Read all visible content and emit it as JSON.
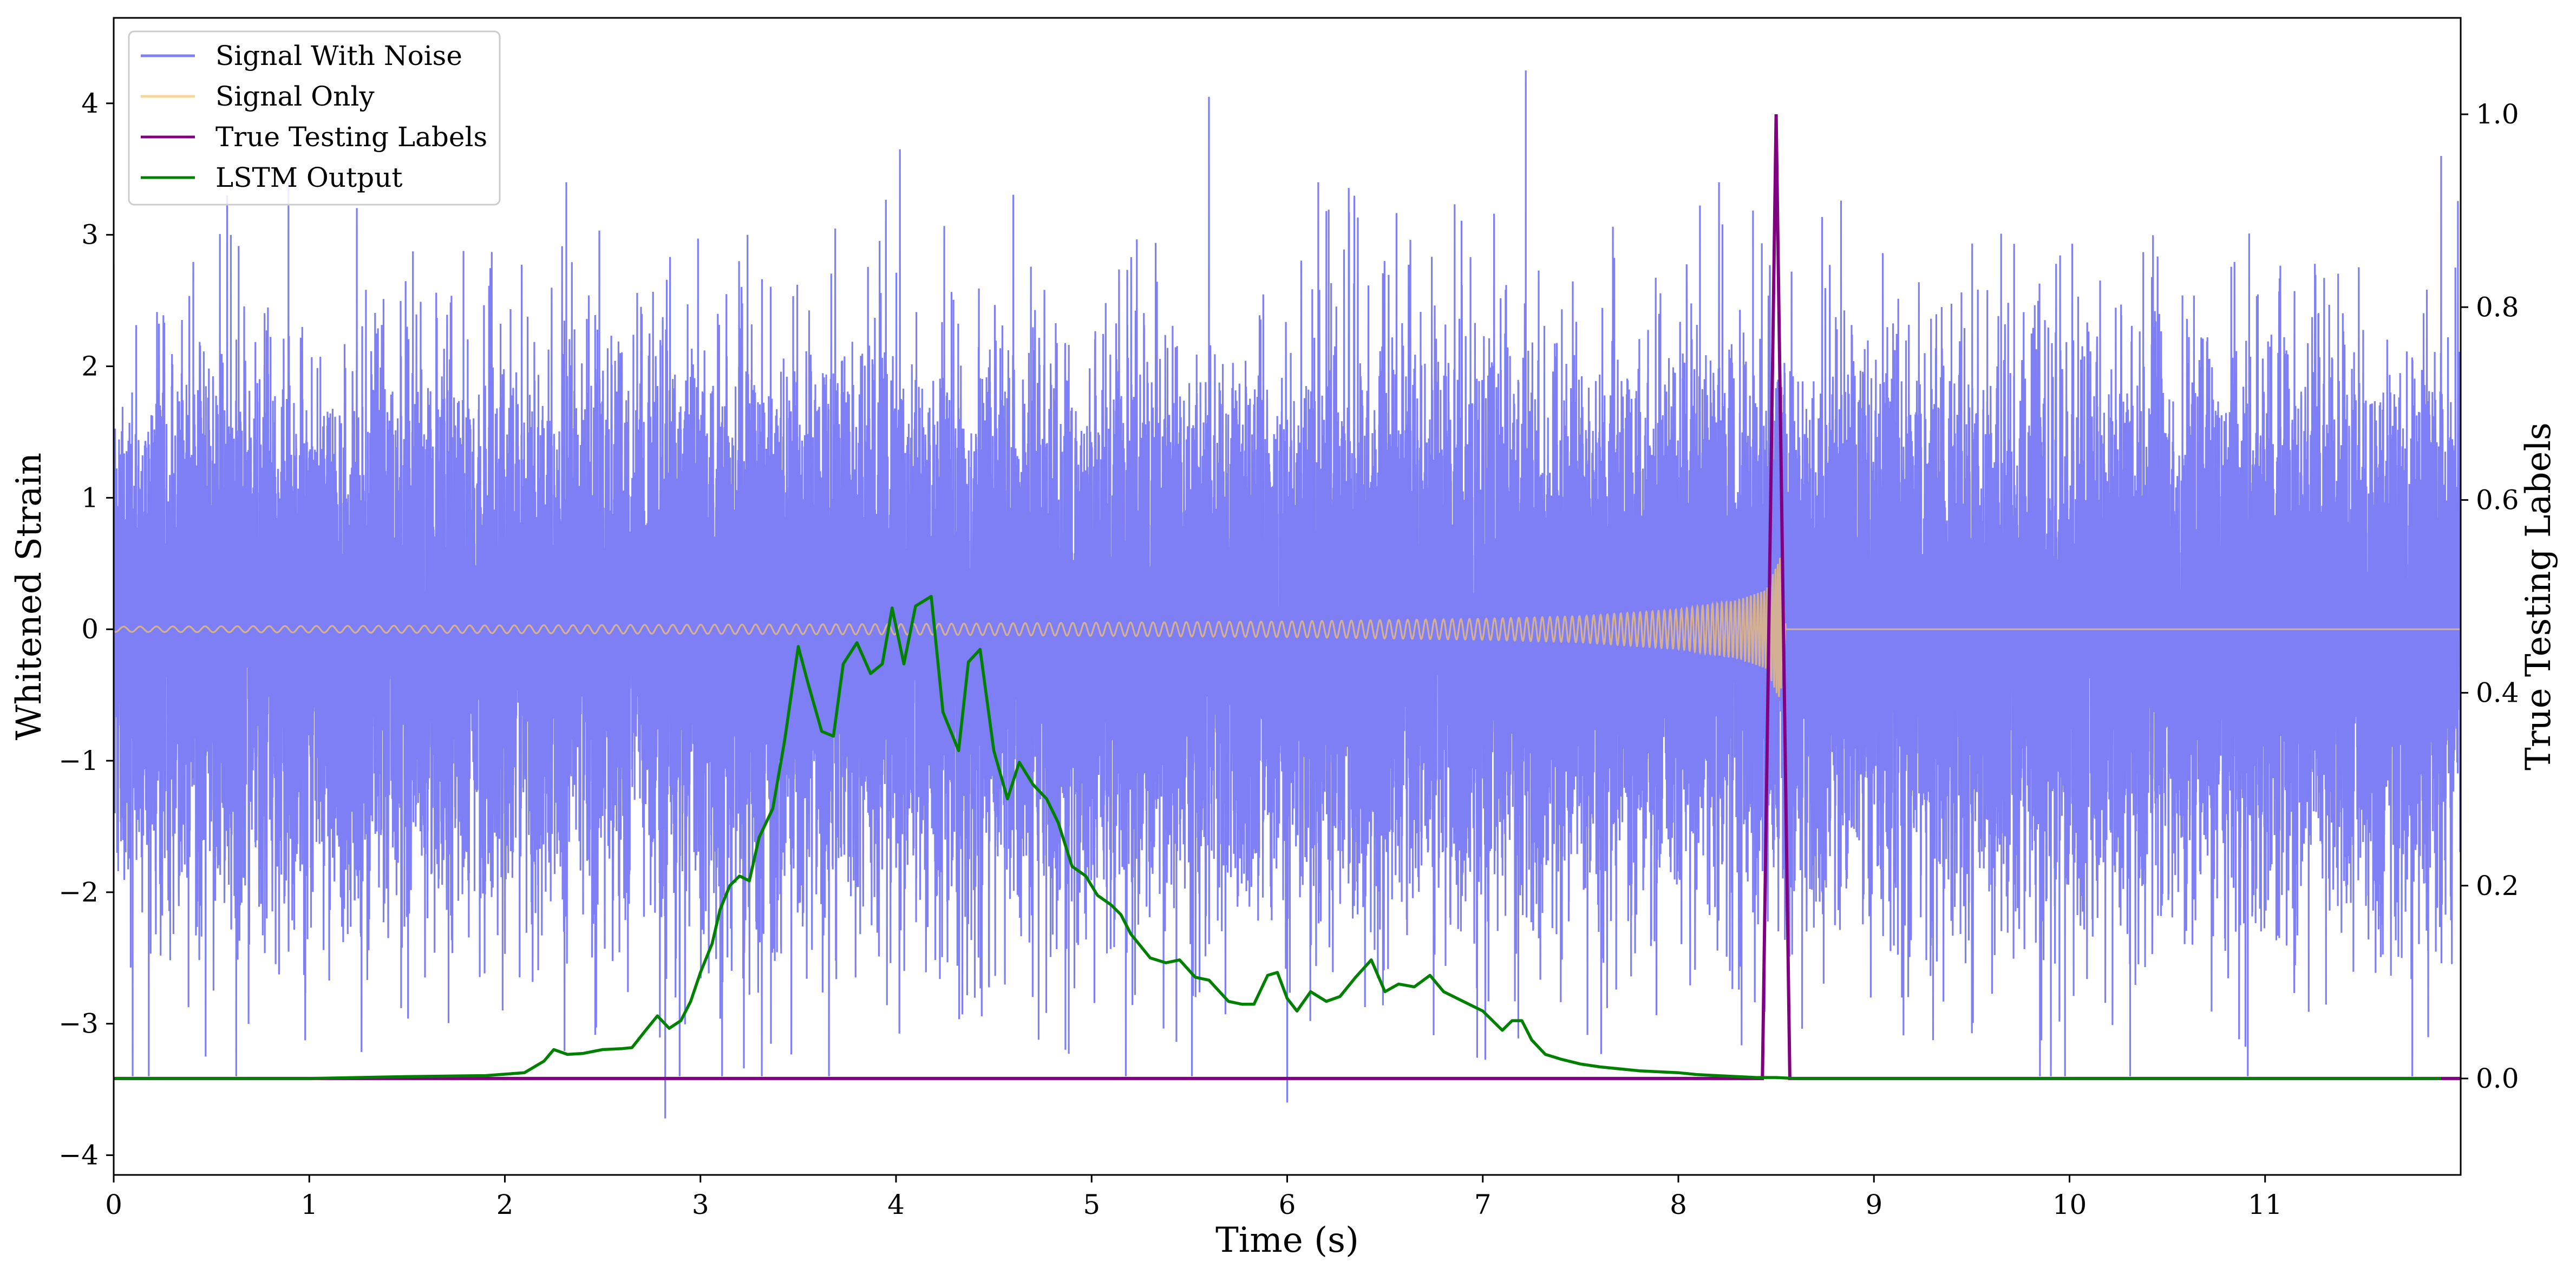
{
  "chart_data": {
    "type": "line",
    "xlabel": "Time (s)",
    "ylabel": "Whitened Strain",
    "ylabel_right": "True Testing Labels",
    "xlim": [
      0,
      12
    ],
    "ylim": [
      -4.15,
      4.65
    ],
    "ylim_right": [
      -0.1,
      1.1
    ],
    "x_ticks": [
      0,
      1,
      2,
      3,
      4,
      5,
      6,
      7,
      8,
      9,
      10,
      11
    ],
    "x_tick_labels": [
      "0",
      "1",
      "2",
      "3",
      "4",
      "5",
      "6",
      "7",
      "8",
      "9",
      "10",
      "11"
    ],
    "y_ticks": [
      -4,
      -3,
      -2,
      -1,
      0,
      1,
      2,
      3,
      4
    ],
    "y_tick_labels": [
      "−4",
      "−3",
      "−2",
      "−1",
      "0",
      "1",
      "2",
      "3",
      "4"
    ],
    "y_right_ticks": [
      0.0,
      0.2,
      0.4,
      0.6,
      0.8,
      1.0
    ],
    "y_right_tick_labels": [
      "0.0",
      "0.2",
      "0.4",
      "0.6",
      "0.8",
      "1.0"
    ],
    "grid": false,
    "legend_position": "top-left",
    "series": [
      {
        "name": "Signal With Noise",
        "color": "#7f7ff5",
        "axis": "left",
        "kind": "noise",
        "description_of_values": "approximately Gaussian noise, std 1",
        "noise_std": 1.0,
        "notable_peaks": [
          [
            0.47,
            -3.25
          ],
          [
            0.58,
            3.3
          ],
          [
            2.82,
            -3.72
          ],
          [
            4.02,
            3.65
          ],
          [
            5.6,
            4.05
          ],
          [
            6.0,
            -3.6
          ],
          [
            7.22,
            4.25
          ],
          [
            11.9,
            3.6
          ]
        ]
      },
      {
        "name": "Signal Only",
        "color": "#f7c36b",
        "axis": "left",
        "kind": "chirp",
        "x_start": 0.0,
        "x_end": 8.55,
        "amplitude_points": [
          [
            0.0,
            0.02
          ],
          [
            2.0,
            0.03
          ],
          [
            4.0,
            0.04
          ],
          [
            6.0,
            0.06
          ],
          [
            7.0,
            0.08
          ],
          [
            7.5,
            0.1
          ],
          [
            8.0,
            0.15
          ],
          [
            8.3,
            0.22
          ],
          [
            8.45,
            0.3
          ],
          [
            8.52,
            0.55
          ],
          [
            8.55,
            0.0
          ]
        ]
      },
      {
        "name": "True Testing Labels",
        "color": "#800080",
        "axis": "right",
        "x": [
          0,
          8.43,
          8.5,
          8.57,
          12
        ],
        "y": [
          0,
          0,
          1.0,
          0,
          0
        ]
      },
      {
        "name": "LSTM Output",
        "color": "#008000",
        "axis": "right",
        "x": [
          0,
          0.5,
          1.0,
          1.5,
          1.9,
          2.1,
          2.2,
          2.25,
          2.32,
          2.4,
          2.5,
          2.6,
          2.65,
          2.72,
          2.78,
          2.84,
          2.9,
          2.95,
          3.0,
          3.06,
          3.1,
          3.15,
          3.2,
          3.25,
          3.3,
          3.37,
          3.43,
          3.5,
          3.55,
          3.62,
          3.68,
          3.73,
          3.8,
          3.87,
          3.93,
          3.98,
          4.04,
          4.1,
          4.18,
          4.24,
          4.32,
          4.37,
          4.43,
          4.5,
          4.57,
          4.63,
          4.7,
          4.77,
          4.83,
          4.9,
          4.97,
          5.03,
          5.1,
          5.15,
          5.2,
          5.3,
          5.38,
          5.45,
          5.53,
          5.6,
          5.7,
          5.77,
          5.83,
          5.9,
          5.95,
          6.0,
          6.05,
          6.12,
          6.2,
          6.27,
          6.35,
          6.43,
          6.5,
          6.57,
          6.65,
          6.73,
          6.8,
          6.9,
          7.0,
          7.1,
          7.15,
          7.2,
          7.25,
          7.32,
          7.4,
          7.5,
          7.6,
          7.7,
          7.8,
          7.9,
          8.0,
          8.1,
          8.2,
          8.3,
          8.4,
          8.5,
          8.6,
          8.8,
          9.0,
          10.0,
          11.0,
          11.9
        ],
        "y": [
          0,
          0,
          0,
          0.002,
          0.003,
          0.006,
          0.018,
          0.03,
          0.025,
          0.026,
          0.03,
          0.031,
          0.032,
          0.05,
          0.065,
          0.052,
          0.06,
          0.08,
          0.11,
          0.14,
          0.175,
          0.2,
          0.21,
          0.205,
          0.25,
          0.28,
          0.35,
          0.448,
          0.41,
          0.36,
          0.355,
          0.43,
          0.452,
          0.42,
          0.43,
          0.488,
          0.43,
          0.49,
          0.5,
          0.38,
          0.34,
          0.432,
          0.445,
          0.34,
          0.29,
          0.328,
          0.305,
          0.29,
          0.265,
          0.22,
          0.21,
          0.19,
          0.18,
          0.17,
          0.15,
          0.125,
          0.12,
          0.123,
          0.105,
          0.102,
          0.08,
          0.077,
          0.077,
          0.107,
          0.11,
          0.083,
          0.07,
          0.09,
          0.08,
          0.085,
          0.105,
          0.123,
          0.09,
          0.098,
          0.095,
          0.107,
          0.09,
          0.08,
          0.07,
          0.05,
          0.06,
          0.06,
          0.04,
          0.025,
          0.02,
          0.015,
          0.012,
          0.01,
          0.008,
          0.007,
          0.006,
          0.004,
          0.003,
          0.002,
          0.001,
          0.001,
          0,
          0,
          0,
          0,
          0,
          0
        ]
      }
    ]
  }
}
